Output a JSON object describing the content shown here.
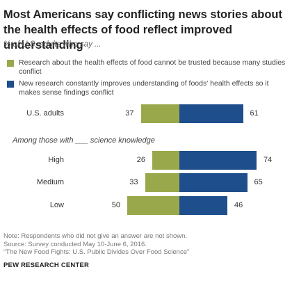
{
  "title": "Most Americans say conflicting news stories about the health effects of food reflect improved understanding",
  "subtitle": "% of U.S. adults who say ...",
  "colors": {
    "research_distrust": "#99a84a",
    "research_improves": "#1f4e8c"
  },
  "legend": [
    {
      "label": "Research about the health effects of food cannot be trusted because many studies conflict",
      "color": "#99a84a"
    },
    {
      "label": "New research constantly improves understanding of foods' health effects so it makes sense findings conflict",
      "color": "#1f4e8c"
    }
  ],
  "section_label": "Among those with ___ science knowledge",
  "chart_data": {
    "type": "bar",
    "orientation": "horizontal-diverging",
    "categories": [
      "U.S. adults",
      "High",
      "Medium",
      "Low"
    ],
    "series": [
      {
        "name": "Research about the health effects of food cannot be trusted because many studies conflict",
        "values": [
          37,
          26,
          33,
          50
        ]
      },
      {
        "name": "New research constantly improves understanding of foods' health effects so it makes sense findings conflict",
        "values": [
          61,
          74,
          65,
          46
        ]
      }
    ],
    "unit": "%",
    "legend_position": "top"
  },
  "footer": {
    "note": "Note: Respondents who did not give an answer are not shown.",
    "source": "Source: Survey conducted May 10-June 6, 2016.",
    "report": "“The New Food Fights: U.S. Public Divides Over Food Science”",
    "org": "PEW RESEARCH CENTER"
  }
}
